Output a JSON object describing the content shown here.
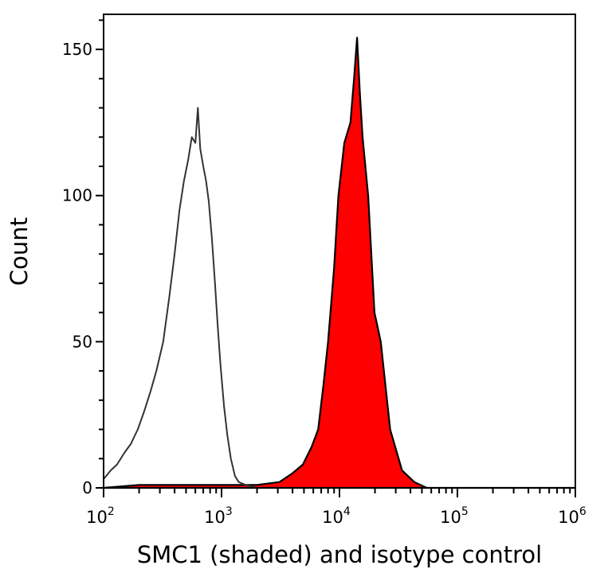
{
  "chart_data": {
    "type": "area",
    "title": "",
    "xlabel": "SMC1 (shaded) and isotype control",
    "ylabel": "Count",
    "x_scale": "log",
    "xlim": [
      100,
      1000000
    ],
    "ylim": [
      0,
      162
    ],
    "x_ticks": [
      {
        "base": "10",
        "exp": "2",
        "value": 100
      },
      {
        "base": "10",
        "exp": "3",
        "value": 1000
      },
      {
        "base": "10",
        "exp": "4",
        "value": 10000
      },
      {
        "base": "10",
        "exp": "5",
        "value": 100000
      },
      {
        "base": "10",
        "exp": "6",
        "value": 1000000
      }
    ],
    "y_ticks": [
      {
        "label": "0",
        "value": 0
      },
      {
        "label": "50",
        "value": 50
      },
      {
        "label": "100",
        "value": 100
      },
      {
        "label": "150",
        "value": 150
      }
    ],
    "grid": false,
    "series": [
      {
        "style": "outline",
        "color": "#333333",
        "x": [
          100,
          115,
          130,
          150,
          170,
          195,
          220,
          250,
          280,
          320,
          360,
          400,
          440,
          480,
          520,
          560,
          600,
          630,
          660,
          700,
          740,
          780,
          830,
          880,
          930,
          980,
          1050,
          1120,
          1200,
          1300,
          1400,
          1600,
          2000,
          3000
        ],
        "y": [
          3,
          6,
          8,
          12,
          15,
          20,
          26,
          33,
          40,
          50,
          65,
          80,
          95,
          105,
          112,
          120,
          118,
          130,
          116,
          110,
          105,
          98,
          85,
          70,
          55,
          42,
          28,
          18,
          10,
          4,
          2,
          1,
          0,
          0
        ]
      },
      {
        "style": "filled",
        "color": "#ff0000",
        "edge_color": "#000000",
        "x": [
          100,
          200,
          500,
          1000,
          2000,
          3100,
          4000,
          4900,
          5800,
          6600,
          7300,
          8000,
          9000,
          9800,
          11000,
          12400,
          13300,
          14100,
          14900,
          15700,
          17500,
          19800,
          22400,
          26900,
          33900,
          43100,
          55000,
          100000,
          1000000
        ],
        "y": [
          0,
          1,
          1,
          1,
          1,
          2,
          5,
          8,
          14,
          20,
          35,
          50,
          75,
          100,
          118,
          125,
          140,
          154,
          135,
          120,
          100,
          60,
          50,
          20,
          6,
          2,
          0,
          0,
          0
        ]
      }
    ]
  }
}
